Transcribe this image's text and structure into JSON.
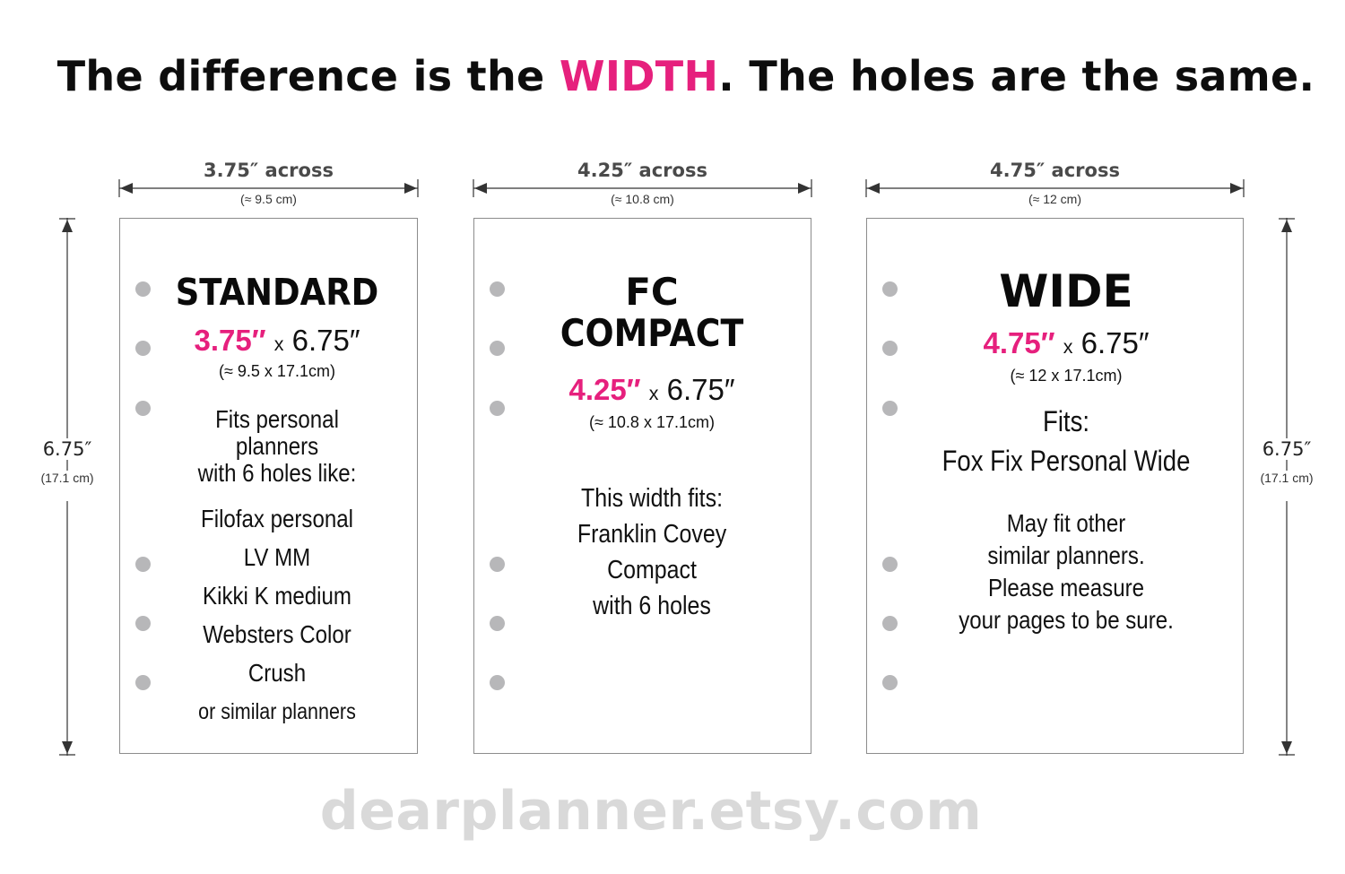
{
  "headline": {
    "before": "The difference is the ",
    "accent": "WIDTH",
    "after": ". The holes are the same."
  },
  "colors": {
    "accent": "#e6207d",
    "hole": "#b7b7b9",
    "border": "#8c8c8c",
    "footer": "#d9d9d9"
  },
  "height_dimension": {
    "label": "6.75″",
    "metric": "(17.1 cm)"
  },
  "cards": [
    {
      "across": "3.75″ across",
      "across_metric": "(≈ 9.5 cm)",
      "title": "STANDARD",
      "width": "3.75″",
      "x": "x",
      "height": "6.75″",
      "size_metric": "(≈ 9.5 x 17.1cm)",
      "fits_intro_1": "Fits personal planners",
      "fits_intro_2": "with 6 holes like:",
      "fits_items": [
        "Filofax personal",
        "LV MM",
        "Kikki K medium",
        "Websters Color Crush"
      ],
      "fits_outro": "or similar planners"
    },
    {
      "across": "4.25″ across",
      "across_metric": "(≈ 10.8 cm)",
      "title_line_1": "FC",
      "title_line_2": "COMPACT",
      "width": "4.25″",
      "x": "x",
      "height": "6.75″",
      "size_metric": "(≈ 10.8 x 17.1cm)",
      "fits_intro": "This width fits:",
      "fits_items": [
        "Franklin Covey Compact",
        "with 6 holes"
      ]
    },
    {
      "across": "4.75″ across",
      "across_metric": "(≈ 12 cm)",
      "title": "WIDE",
      "width": "4.75″",
      "x": "x",
      "height": "6.75″",
      "size_metric": "(≈ 12 x 17.1cm)",
      "fits_intro": "Fits:",
      "fits_items": [
        "Fox Fix Personal Wide"
      ],
      "note_lines": [
        "May fit other",
        "similar planners.",
        "Please measure",
        "your pages to be sure."
      ]
    }
  ],
  "footer": "dearplanner.etsy.com"
}
